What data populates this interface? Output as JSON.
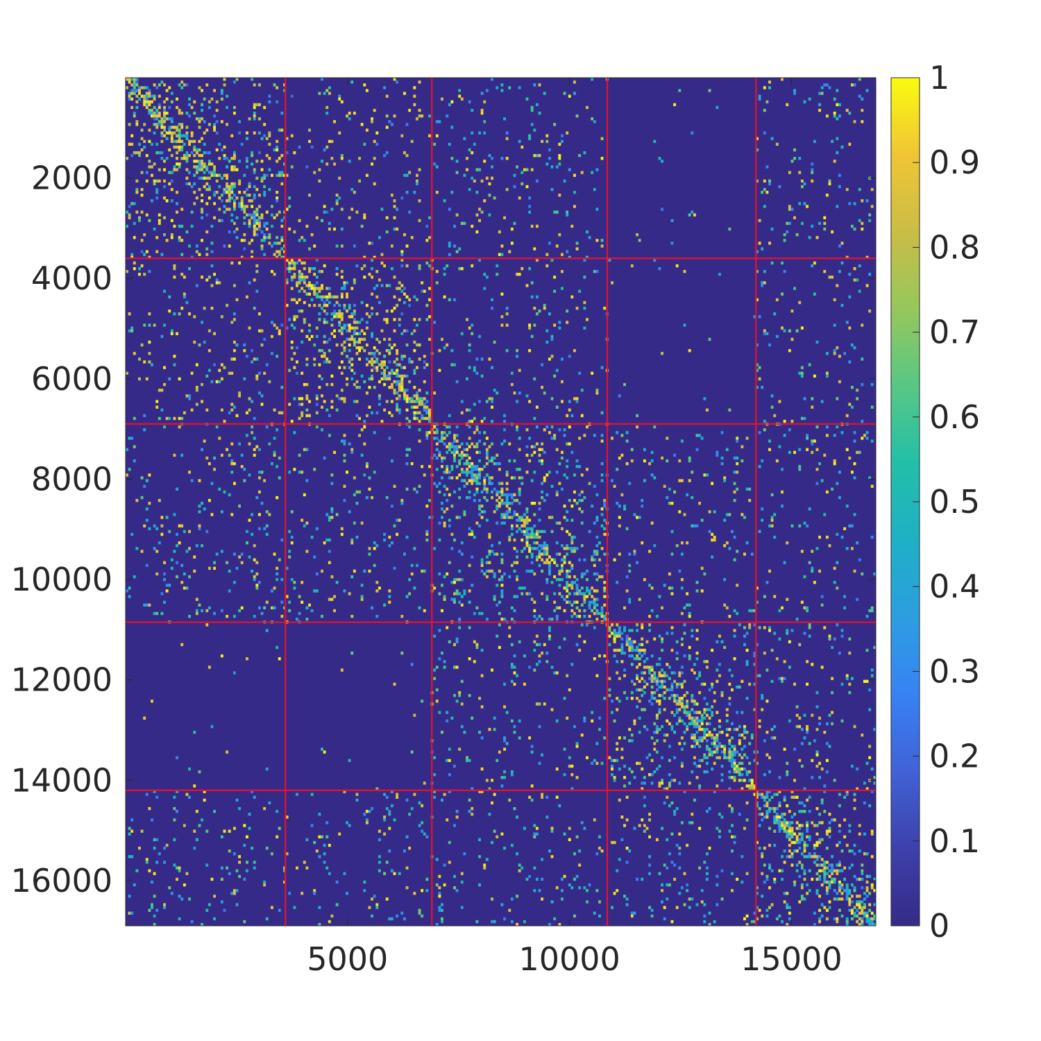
{
  "chart_data": {
    "type": "heatmap",
    "title": "",
    "xlabel": "",
    "ylabel": "",
    "matrix_size": 16900,
    "xlim": [
      1,
      16900
    ],
    "ylim": [
      1,
      16900
    ],
    "y_axis_direction": "reversed",
    "x_ticks": [
      5000,
      10000,
      15000
    ],
    "x_tick_labels": [
      "5000",
      "10000",
      "15000"
    ],
    "y_ticks": [
      2000,
      4000,
      6000,
      8000,
      10000,
      12000,
      14000,
      16000
    ],
    "y_tick_labels": [
      "2000",
      "4000",
      "6000",
      "8000",
      "10000",
      "12000",
      "14000",
      "16000"
    ],
    "value_range": [
      0,
      1
    ],
    "colormap": "parula",
    "colormap_stops": [
      "#352a87",
      "#3e40ab",
      "#4062d6",
      "#3882f4",
      "#2c9ee0",
      "#1eb0c5",
      "#23bfa8",
      "#58c785",
      "#96c75c",
      "#cabd46",
      "#f0c535",
      "#f9fb0e"
    ],
    "colorbar": {
      "position": "right",
      "ticks": [
        0,
        0.1,
        0.2,
        0.3,
        0.4,
        0.5,
        0.6,
        0.7,
        0.8,
        0.9,
        1
      ],
      "tick_labels": [
        "0",
        "0.1",
        "0.2",
        "0.3",
        "0.4",
        "0.5",
        "0.6",
        "0.7",
        "0.8",
        "0.9",
        "1"
      ]
    },
    "block_boundaries": [
      3600,
      6900,
      10850,
      14200
    ],
    "boundary_color": "#e8112d",
    "background_value": 0,
    "blocks": [
      {
        "rows": [
          1,
          3600
        ],
        "cols": [
          1,
          3600
        ],
        "level": "high"
      },
      {
        "rows": [
          3600,
          6900
        ],
        "cols": [
          3600,
          6900
        ],
        "level": "high"
      },
      {
        "rows": [
          6900,
          10850
        ],
        "cols": [
          6900,
          10850
        ],
        "level": "medium"
      },
      {
        "rows": [
          10850,
          14200
        ],
        "cols": [
          10850,
          14200
        ],
        "level": "medium"
      },
      {
        "rows": [
          14200,
          16900
        ],
        "cols": [
          14200,
          16900
        ],
        "level": "medium"
      },
      {
        "rows": [
          1,
          6900
        ],
        "cols": [
          10850,
          14200
        ],
        "level": "near-zero"
      },
      {
        "rows": [
          10850,
          14200
        ],
        "cols": [
          1,
          6900
        ],
        "level": "near-zero"
      }
    ]
  }
}
